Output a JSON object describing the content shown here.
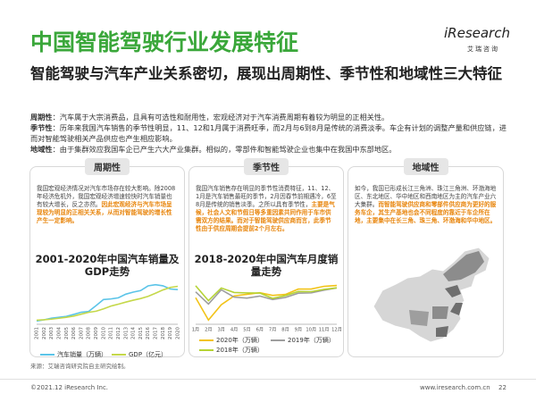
{
  "header": {
    "title": "中国智能驾驶行业发展特征",
    "brand": "iResearch",
    "brand_cn": "艾瑞咨询"
  },
  "subtitle": "智能驾驶与汽车产业关系密切，展现出周期性、季节性和地域性三大特征",
  "points": [
    {
      "label": "周期性",
      "text": "：汽车属于大宗消费品，且具有可选性和耐用性，宏观经济对于汽车消费周期有着较为明显的正相关性。"
    },
    {
      "label": "季节性",
      "text": "：历年来我国汽车销售的季节性明显，11、12和1月属于消费旺季，而2月与6到8月是传统的消费淡季。车企有计划的调整产量和供应链，进而对智能驾驶相关产品供应也产生相应影响。"
    },
    {
      "label": "地域性",
      "text": "：由于集群效应我国车企已产生六大产业集群。相似的，零部件和智能驾驶企业也集中在我国中东部地区。"
    }
  ],
  "panels": [
    {
      "heading": "周期性",
      "text": "我国宏观经济情况对汽车市场存在较大影响。除2008年经济危机外，我国宏观经济增速较快时汽车销量也有较大增长，反之亦然。",
      "highlight": "因此宏观经济与汽车市场呈现较为明显的正相关关系，从而对智能驾驶的增长性产生一定影响。",
      "chart": {
        "type": "line",
        "title": "2001-2020年中国汽车销量及GDP走势",
        "categories": [
          "2001",
          "2002",
          "2003",
          "2004",
          "2005",
          "2006",
          "2007",
          "2008",
          "2009",
          "2010",
          "2011",
          "2012",
          "2013",
          "2014",
          "2015",
          "2016",
          "2017",
          "2018",
          "2019",
          "2020"
        ],
        "series": [
          {
            "name": "汽车销量（万辆）",
            "color": "#5bc4e8",
            "values": [
              237,
              325,
              444,
              507,
              576,
              722,
              879,
              938,
              1364,
              1806,
              1851,
              1931,
              2198,
              2349,
              2460,
              2803,
              2888,
              2808,
              2577,
              2531
            ]
          },
          {
            "name": "GDP（亿元）",
            "color": "#c5d84a",
            "axis": "y2",
            "values": [
              110863,
              121717,
              137422,
              161840,
              187319,
              219439,
              270232,
              319516,
              349081,
              412119,
              487940,
              538580,
              592963,
              643563,
              688858,
              746395,
              832036,
              919281,
              986515,
              1015986
            ]
          }
        ],
        "ylim": [
          0,
          3000
        ],
        "y2lim": [
          0,
          1100000
        ]
      }
    },
    {
      "heading": "季节性",
      "text": "我国汽车销售存在明显的季节性消费特征，11、12、1月是汽车销售最旺的季节，2月因春节前期遇冷，6至8月是传统的销售淡季。之所以具有季节性，",
      "highlight": "主要是气候，社会人文和节假日等多重因素共同作用于车市供需双方的结果。而对于智能驾驶供应商而言，此季节性由于供应周期会提前2个月左右。",
      "chart": {
        "type": "line",
        "title": "2018-2020年中国汽车月度销量走势",
        "categories": [
          "1月",
          "2月",
          "3月",
          "4月",
          "5月",
          "6月",
          "7月",
          "8月",
          "9月",
          "10月",
          "11月",
          "12月"
        ],
        "series": [
          {
            "name": "2020年（万辆）",
            "color": "#f2c318",
            "values": [
              194,
              31,
              143,
              207,
              219,
              230,
              211,
              218,
              257,
              257,
              277,
              283
            ]
          },
          {
            "name": "2019年（万辆）",
            "color": "#9e9e9e",
            "values": [
              237,
              148,
              252,
              198,
              191,
              206,
              181,
              196,
              227,
              229,
              249,
              265
            ]
          },
          {
            "name": "2018年（万辆）",
            "color": "#b5d334",
            "values": [
              281,
              172,
              265,
              232,
              229,
              228,
              189,
              210,
              239,
              238,
              255,
              266
            ]
          }
        ],
        "ylim": [
          0,
          300
        ]
      }
    },
    {
      "heading": "地域性",
      "text": "如今，我国已形成长江三角洲、珠江三角洲、环渤海地区、东北地区、华中地区和西南地区为主的汽车产业六大集群。",
      "highlight": "而智能驾驶供应商和零部件供应商为更好的服务车企，其生产基地也会不同程度的靠近于车企所在地，主要集中在长三角、珠三角、环渤海和华中地区。"
    }
  ],
  "source": "来源：艾瑞咨询研究院自主研究绘制。",
  "footer": {
    "copyright": "©2021.12 iResearch Inc.",
    "url": "www.iresearch.com.cn",
    "page": "22"
  }
}
